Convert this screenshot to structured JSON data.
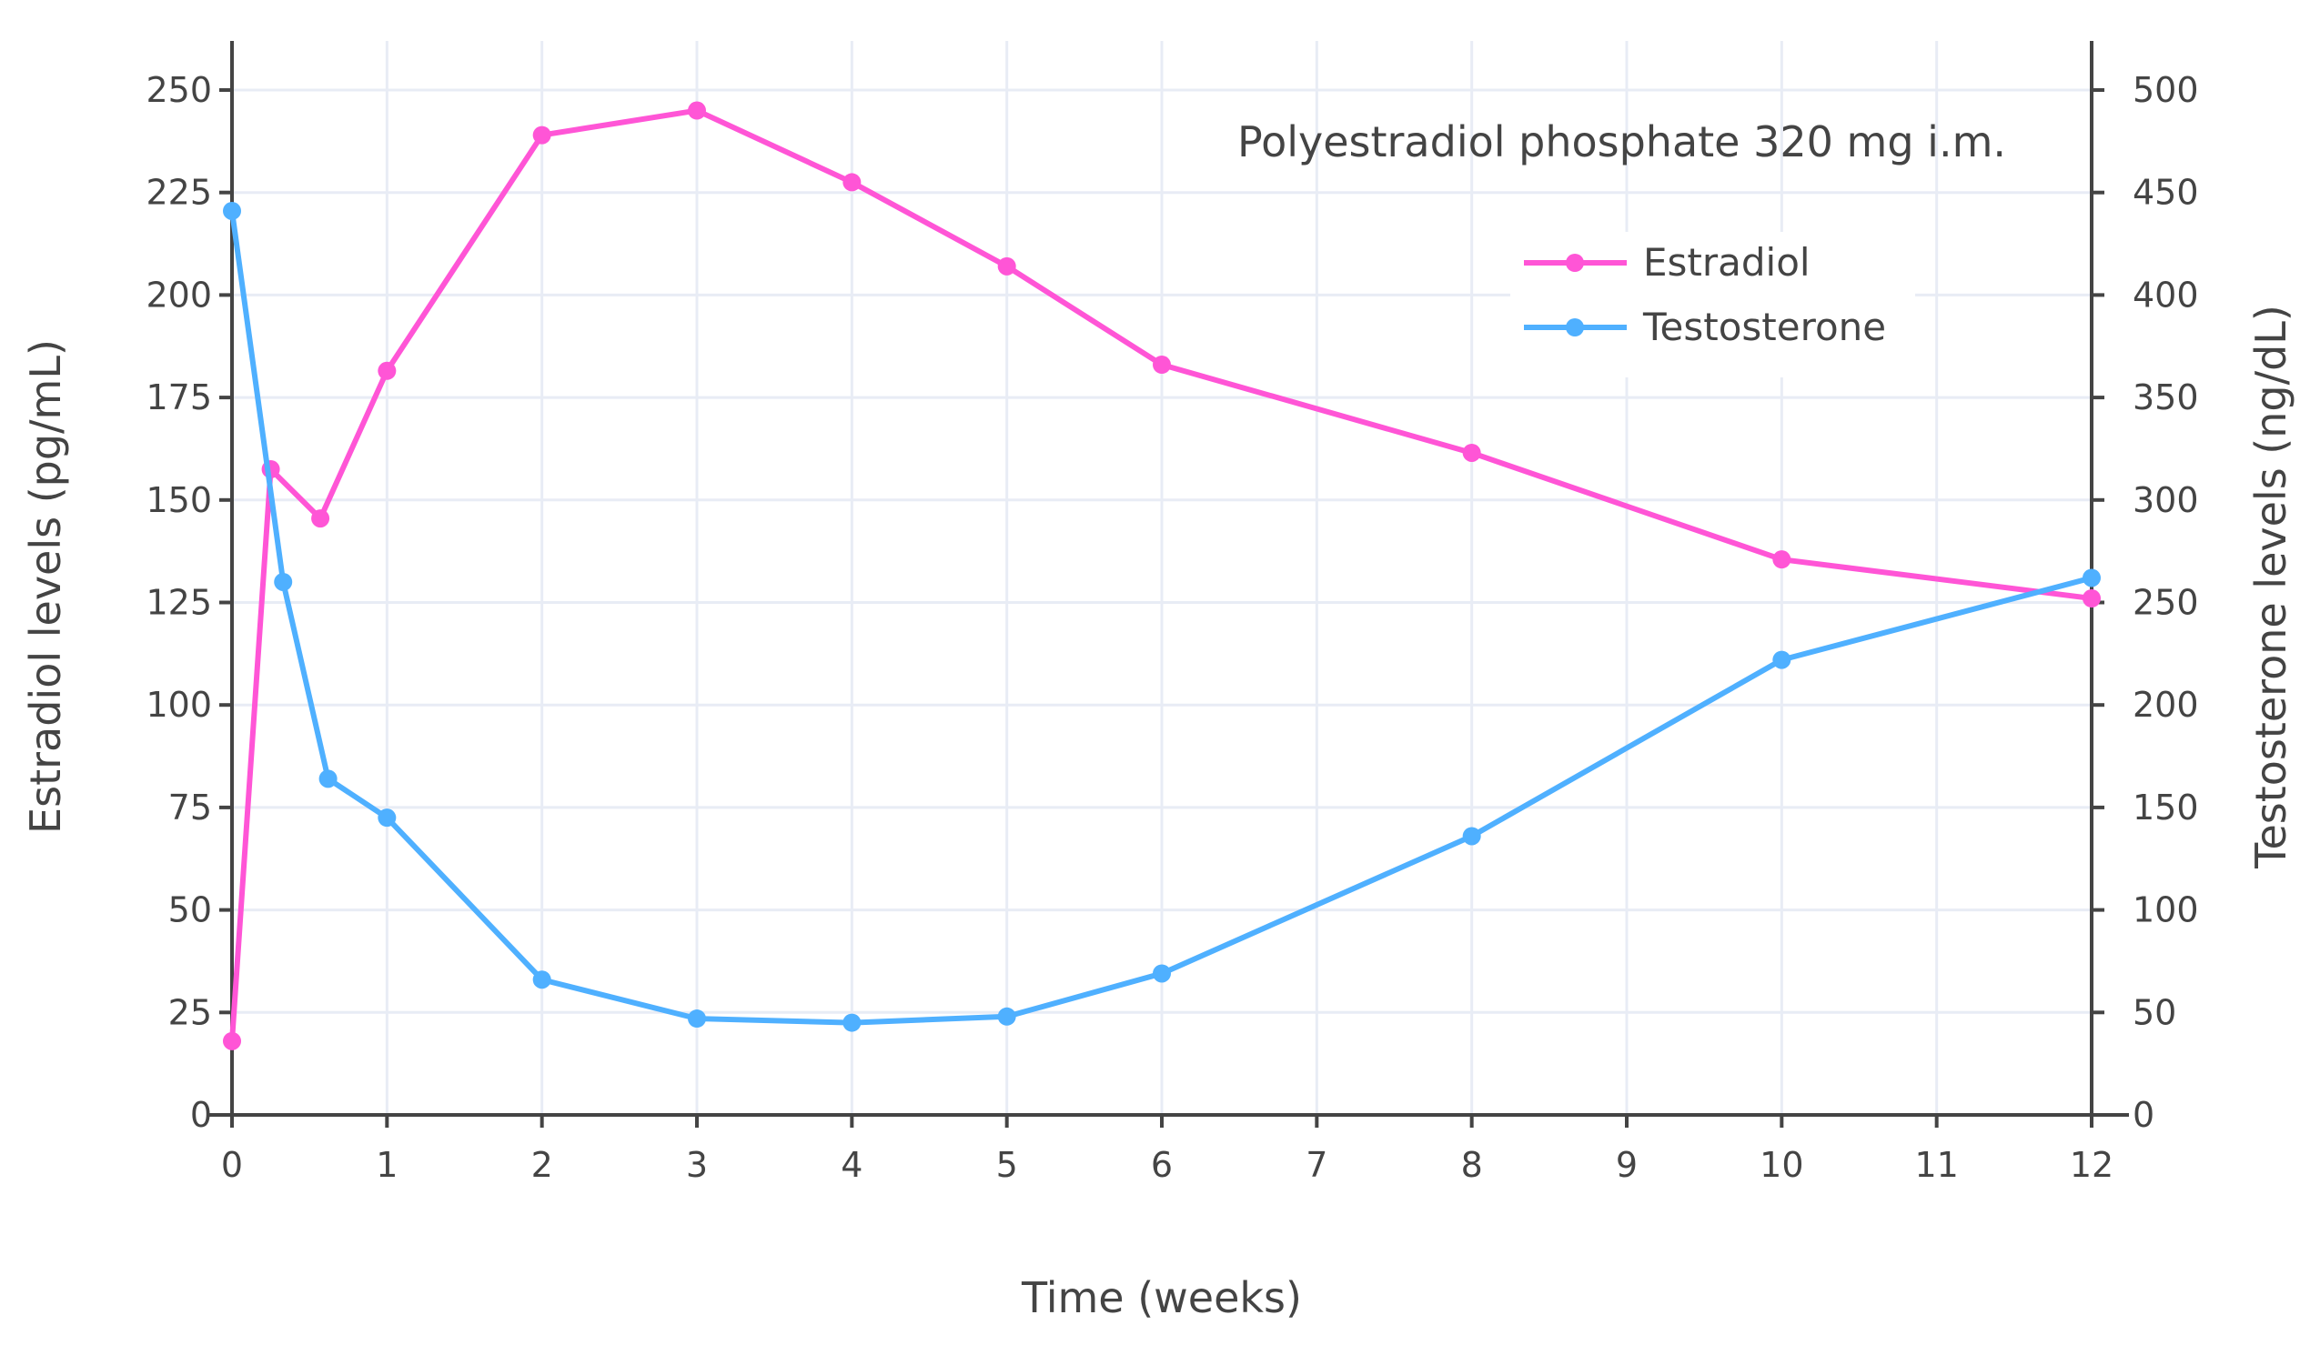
{
  "chart_data": {
    "type": "line",
    "annotation": "Polyestradiol phosphate 320 mg i.m.",
    "xlabel": "Time (weeks)",
    "ylabel": "Estradiol levels (pg/mL)",
    "y2label": "Testosterone levels (ng/dL)",
    "xlim": [
      0,
      12
    ],
    "ylim": [
      0,
      250
    ],
    "y2lim": [
      0,
      500
    ],
    "x_ticks": [
      0,
      1,
      2,
      3,
      4,
      5,
      6,
      7,
      8,
      9,
      10,
      11,
      12
    ],
    "y_ticks": [
      0,
      25,
      50,
      75,
      100,
      125,
      150,
      175,
      200,
      225,
      250
    ],
    "y2_ticks": [
      0,
      50,
      100,
      150,
      200,
      250,
      300,
      350,
      400,
      450,
      500
    ],
    "grid": true,
    "legend_position": "top-right",
    "series": [
      {
        "name": "Estradiol",
        "axis": "left",
        "color": "#ff55d6",
        "x": [
          0,
          0.25,
          0.57,
          1,
          2,
          3,
          4,
          5,
          6,
          8,
          10,
          12
        ],
        "y": [
          18,
          157.5,
          145.5,
          181.5,
          239,
          245,
          227.5,
          207,
          183,
          161.5,
          135.5,
          126
        ]
      },
      {
        "name": "Testosterone",
        "axis": "right",
        "color": "#4fb0ff",
        "x": [
          0,
          0.33,
          0.62,
          1,
          2,
          3,
          4,
          5,
          6,
          8,
          10,
          12
        ],
        "y": [
          441,
          260,
          164,
          145,
          66,
          47,
          45,
          48,
          69,
          136,
          222,
          262
        ]
      }
    ]
  }
}
